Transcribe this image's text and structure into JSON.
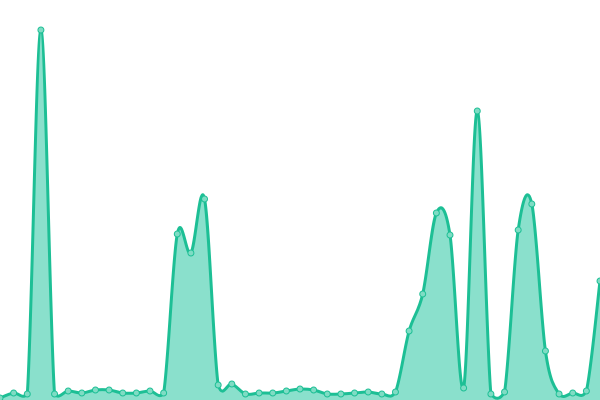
{
  "chart_data": {
    "type": "area",
    "title": "",
    "xlabel": "",
    "ylabel": "",
    "axes_visible": false,
    "grid": false,
    "legend": "none",
    "smooth": true,
    "x": [
      0,
      1,
      2,
      3,
      4,
      5,
      6,
      7,
      8,
      9,
      10,
      11,
      12,
      13,
      14,
      15,
      16,
      17,
      18,
      19,
      20,
      21,
      22,
      23,
      24,
      25,
      26,
      27,
      28,
      29,
      30,
      31,
      32,
      33,
      34,
      35,
      36,
      37,
      38,
      39,
      40,
      41,
      42,
      43,
      44
    ],
    "values": [
      2,
      7,
      6,
      370,
      6,
      9,
      7,
      10,
      10,
      7,
      7,
      9,
      7,
      166,
      147,
      201,
      15,
      16,
      6,
      7,
      7,
      9,
      11,
      10,
      6,
      6,
      7,
      8,
      6,
      8,
      69,
      106,
      187,
      165,
      12,
      289,
      6,
      8,
      170,
      196,
      49,
      6,
      7,
      9,
      119
    ],
    "ylim": [
      0,
      400
    ],
    "colors": {
      "line": "#1dbf95",
      "fill": "#8ae0cc",
      "marker": "#7fdcc4"
    }
  }
}
